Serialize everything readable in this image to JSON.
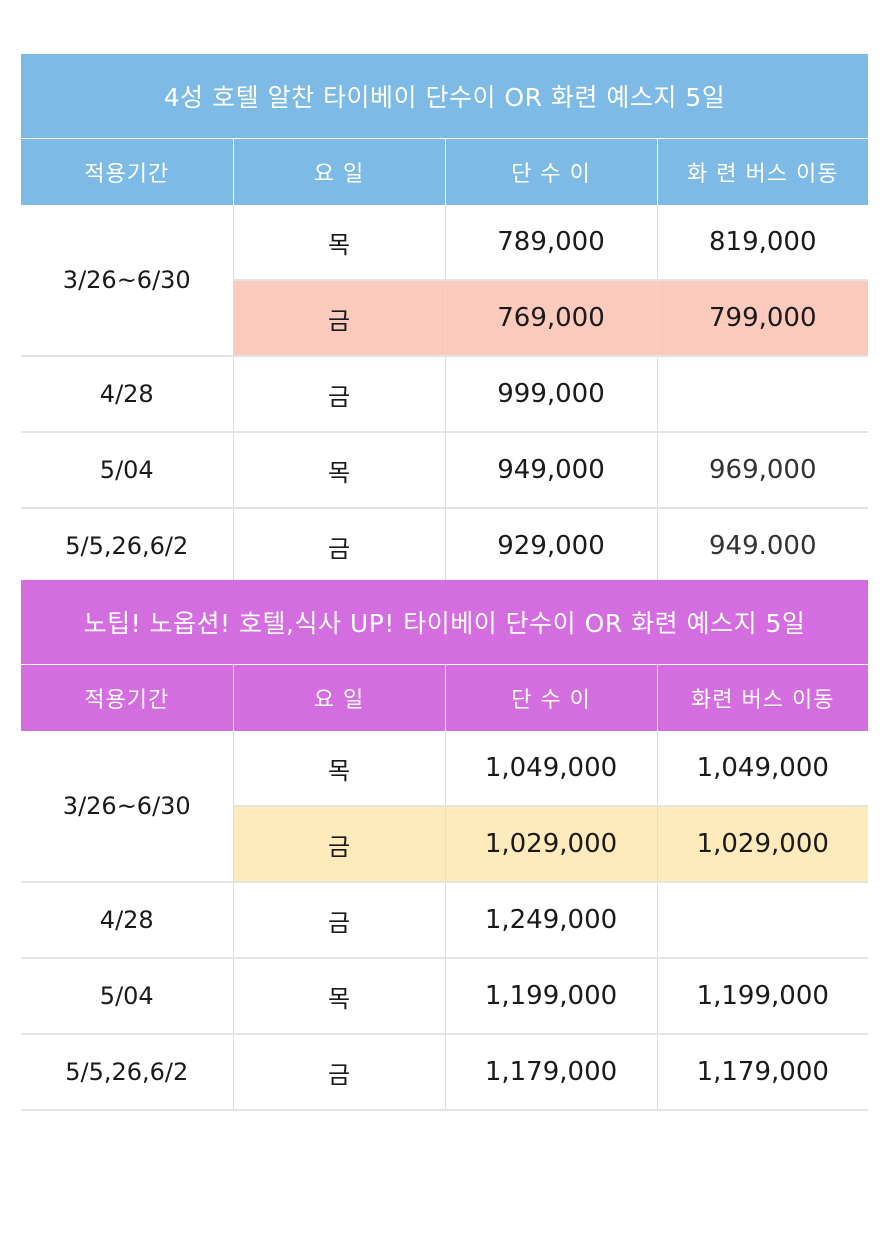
{
  "tables": [
    {
      "title": "4성 호텔 알찬 타이베이 단수이 OR 화련 예스지 5일",
      "header_color": "#7dbbe6",
      "highlight_color": "#fccabd",
      "headers": [
        "적용기간",
        "요 일",
        "단 수 이",
        "화 련 버스 이동"
      ],
      "rows": [
        {
          "period": "3/26~6/30",
          "day": "목",
          "danshui": "789,000",
          "hualien": "819,000"
        },
        {
          "period": "",
          "day": "금",
          "danshui": "769,000",
          "hualien": "799,000"
        },
        {
          "period": "4/28",
          "day": "금",
          "danshui": "999,000",
          "hualien": ""
        },
        {
          "period": "5/04",
          "day": "목",
          "danshui": "949,000",
          "hualien": "969,000"
        },
        {
          "period": "5/5,26,6/2",
          "day": "금",
          "danshui": "929,000",
          "hualien": "949.000"
        }
      ]
    },
    {
      "title": "노팁! 노옵션! 호텔,식사 UP!  타이베이 단수이 OR 화련  예스지 5일",
      "header_color": "#d46ee0",
      "highlight_color": "#ffeabb",
      "headers": [
        "적용기간",
        "요 일",
        "단 수 이",
        "화련 버스  이동"
      ],
      "rows": [
        {
          "period": "3/26~6/30",
          "day": "목",
          "danshui": "1,049,000",
          "hualien": "1,049,000"
        },
        {
          "period": "",
          "day": "금",
          "danshui": "1,029,000",
          "hualien": "1,029,000"
        },
        {
          "period": "4/28",
          "day": "금",
          "danshui": "1,249,000",
          "hualien": ""
        },
        {
          "period": "5/04",
          "day": "목",
          "danshui": "1,199,000",
          "hualien": "1,199,000"
        },
        {
          "period": "5/5,26,6/2",
          "day": "금",
          "danshui": "1,179,000",
          "hualien": "1,179,000"
        }
      ]
    }
  ]
}
